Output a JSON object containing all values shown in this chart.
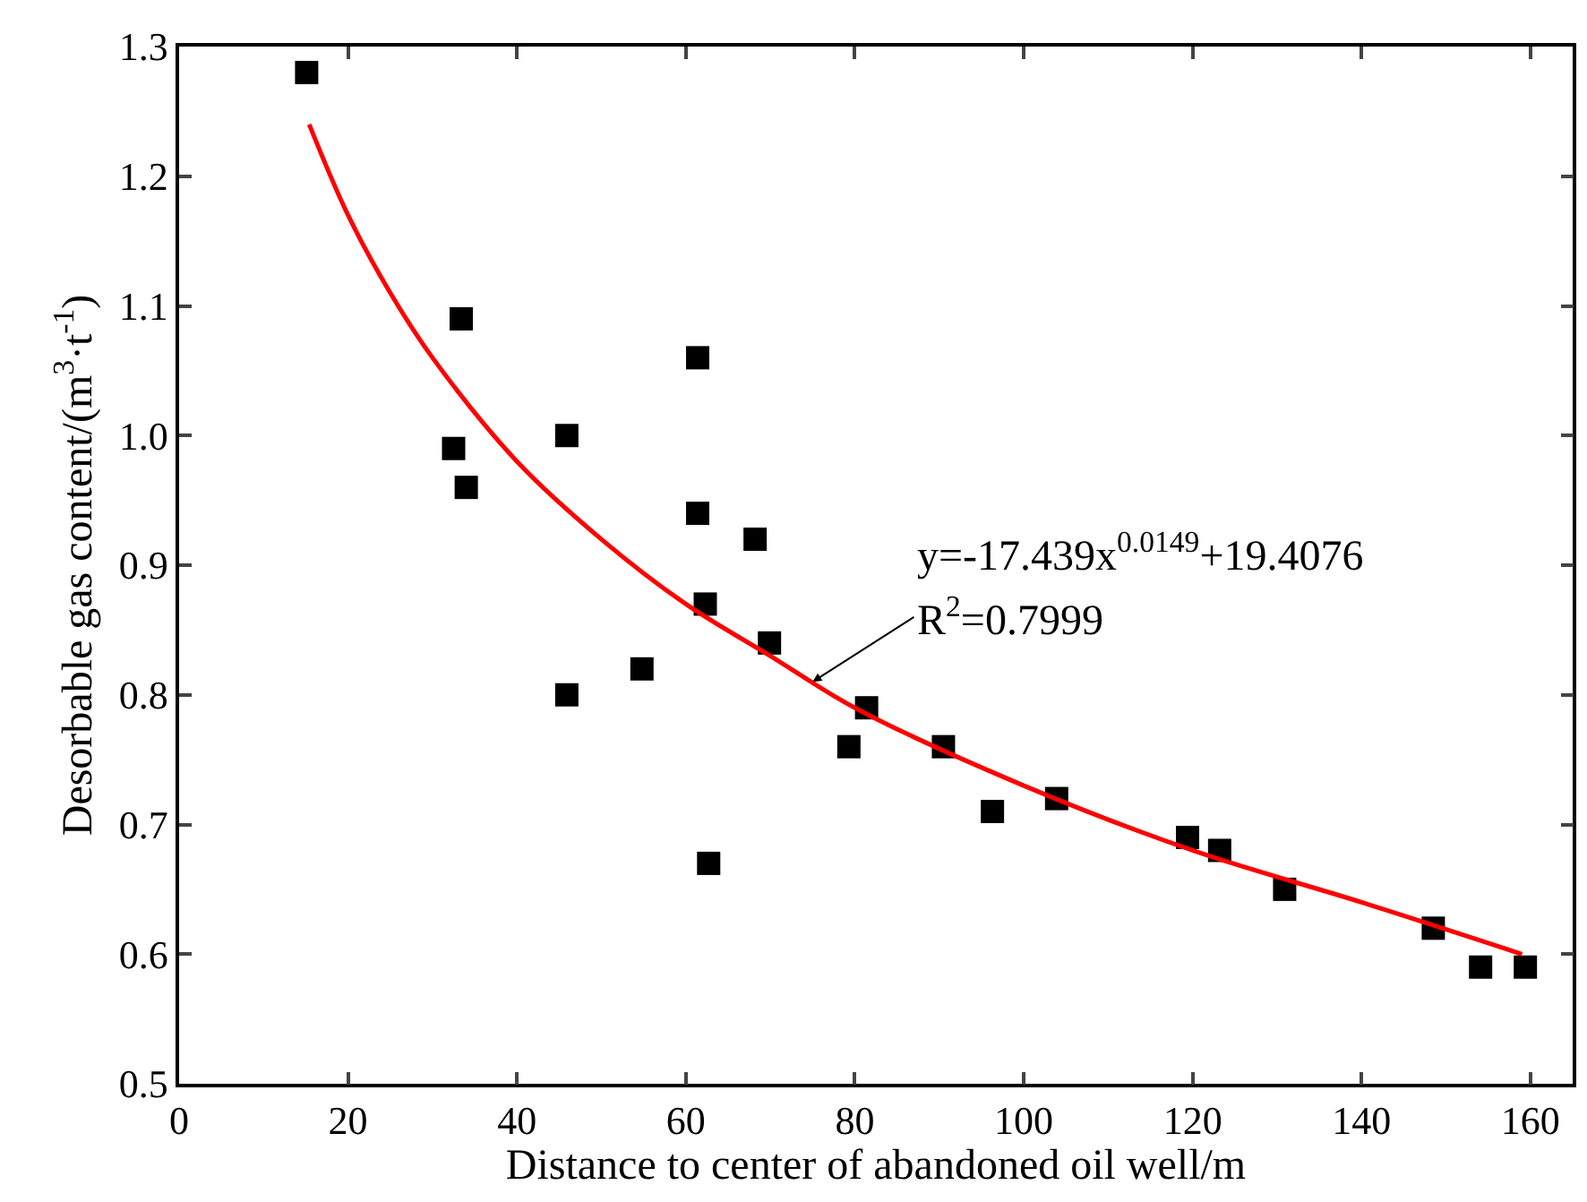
{
  "chart_data": {
    "type": "scatter",
    "xlabel": "Distance to center of abandoned oil well/m",
    "ylabel": "Desorbable gas content/(m$^{3}$·t$^{-1}$)",
    "xlim": [
      0,
      165
    ],
    "xticks": [
      0,
      20,
      40,
      60,
      80,
      100,
      120,
      140,
      160
    ],
    "ylim": [
      0.5,
      1.3
    ],
    "yticks": [
      {
        "value": 0.5,
        "label": "0.5"
      },
      {
        "value": 0.6,
        "label": "0.6"
      },
      {
        "value": 0.7,
        "label": "0.7"
      },
      {
        "value": 0.8,
        "label": "0.8"
      },
      {
        "value": 0.9,
        "label": "0.9"
      },
      {
        "value": 1,
        "label": "1.0"
      },
      {
        "value": 1.1,
        "label": "1.1"
      },
      {
        "value": 1.2,
        "label": "1.2"
      },
      {
        "value": 1.3,
        "label": "1.3"
      }
    ],
    "series": [
      {
        "color": "#000000",
        "marker": "square",
        "x": [
          15.1,
          33.4,
          32.5,
          34,
          45.9,
          45.9,
          54.8,
          61.4,
          61.4,
          62.3,
          62.7,
          68.2,
          69.9,
          79.3,
          81.4,
          90.5,
          96.3,
          103.9,
          119.4,
          123.2,
          130.9,
          148.5,
          154.1,
          159.4
        ],
        "values": [
          1.28,
          1.09,
          0.99,
          0.96,
          1.0,
          0.8,
          0.82,
          1.06,
          0.94,
          0.87,
          0.67,
          0.92,
          0.84,
          0.76,
          0.79,
          0.76,
          0.71,
          0.72,
          0.69,
          0.68,
          0.65,
          0.62,
          0.59,
          0.59
        ]
      },
      {
        "type": "line",
        "color": "#ff0000",
        "marker": "none",
        "line_style": "solid",
        "x": [
          15.4,
          20,
          25,
          30,
          40,
          50,
          60,
          70,
          80,
          100,
          120,
          140,
          159
        ],
        "values": [
          1.24,
          1.17,
          1.11,
          1.06,
          0.98,
          0.92,
          0.87,
          0.83,
          0.79,
          0.73,
          0.68,
          0.64,
          0.6
        ]
      }
    ],
    "annotations": [
      "y=-17.439x$^{0.0149}$+19.4076",
      {
        "text": "R$^{2}$=0.7999",
        "x": 75,
        "y": 0.81
      }
    ]
  }
}
